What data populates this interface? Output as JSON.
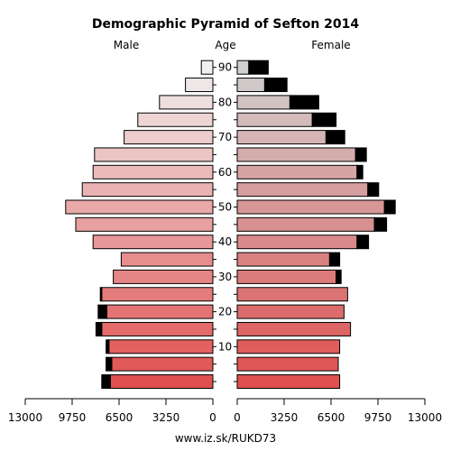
{
  "chart_data": {
    "type": "bar",
    "title": "Demographic Pyramid of Sefton 2014",
    "male_label": "Male",
    "female_label": "Female",
    "age_label": "Age",
    "footer": "www.iz.sk/RUKD73",
    "age_groups": [
      "0-4",
      "5-9",
      "10-14",
      "15-19",
      "20-24",
      "25-29",
      "30-34",
      "35-39",
      "40-44",
      "45-49",
      "50-54",
      "55-59",
      "60-64",
      "65-69",
      "70-74",
      "75-79",
      "80-84",
      "85-89",
      "90+"
    ],
    "age_ticks": [
      "10",
      "20",
      "30",
      "40",
      "50",
      "60",
      "70",
      "80",
      "90"
    ],
    "x_ticks_left": [
      "13000",
      "9750",
      "6500",
      "3250",
      "0"
    ],
    "x_ticks_right": [
      "0",
      "3250",
      "6500",
      "9750",
      "13000"
    ],
    "xlim": [
      0,
      13000
    ],
    "series": [
      {
        "name": "Male",
        "base": [
          7100,
          7000,
          7200,
          7700,
          7350,
          7700,
          6900,
          6350,
          8300,
          9500,
          10200,
          9050,
          8300,
          8200,
          6150,
          5200,
          3700,
          1900,
          800
        ],
        "excess": [
          600,
          400,
          200,
          400,
          600,
          100,
          0,
          0,
          0,
          0,
          0,
          0,
          0,
          0,
          0,
          0,
          0,
          0,
          0
        ]
      },
      {
        "name": "Female",
        "base": [
          7100,
          7000,
          7100,
          7850,
          7400,
          7650,
          6850,
          6400,
          8300,
          9500,
          10200,
          9050,
          8300,
          8200,
          6150,
          5200,
          3650,
          1900,
          800
        ],
        "excess": [
          0,
          0,
          0,
          0,
          0,
          0,
          350,
          700,
          800,
          850,
          750,
          750,
          400,
          750,
          1300,
          1650,
          2000,
          1550,
          1350
        ]
      }
    ],
    "colors": {
      "male_young": "#e05050",
      "male_old": "#f0f0f0",
      "female_young": "#e05050",
      "female_old": "#d0d0d0",
      "excess": "#000000"
    },
    "grid": false
  }
}
